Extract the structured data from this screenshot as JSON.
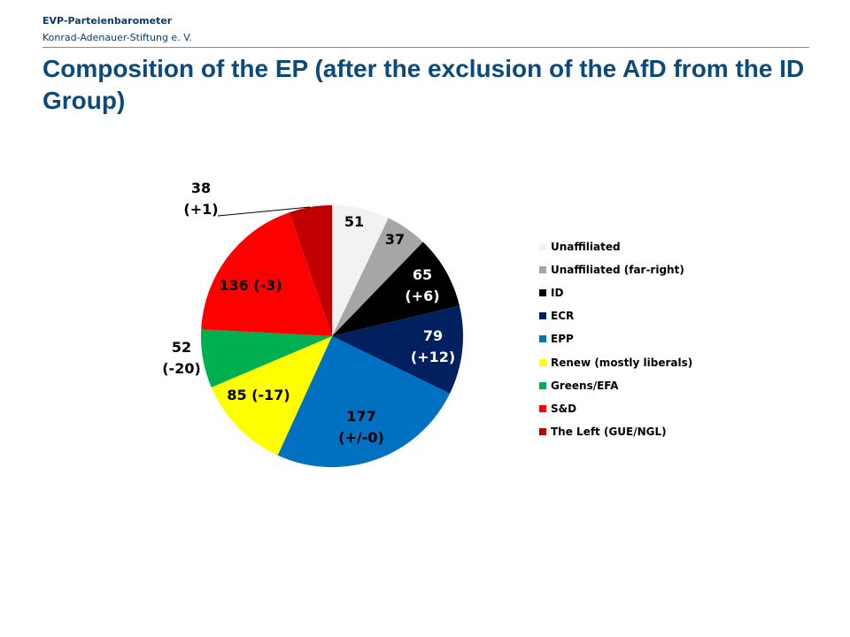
{
  "header": {
    "org": "EVP-Parteienbarometer",
    "subtitle": "Konrad-Adenauer-Stiftung e. V.",
    "title": "Composition of the EP (after the exclusion of the AfD from the ID Group)"
  },
  "chart_data": {
    "type": "pie",
    "title": "Composition of the EP (after the exclusion of the AfD from the ID Group)",
    "legend_position": "right",
    "categories": [
      "Unaffiliated",
      "Unaffiliated (far-right)",
      "ID",
      "ECR",
      "EPP",
      "Renew (mostly liberals)",
      "Greens/EFA",
      "S&D",
      "The Left (GUE/NGL)"
    ],
    "values": [
      51,
      37,
      65,
      79,
      177,
      85,
      52,
      136,
      38
    ],
    "changes": [
      "",
      "",
      "+6",
      "+12",
      "+/-0",
      "-17",
      "-20",
      "-3",
      "+1"
    ],
    "labels": [
      [
        "51"
      ],
      [
        "37"
      ],
      [
        "65",
        "(+6)"
      ],
      [
        "79",
        "(+12)"
      ],
      [
        "177",
        "(+/-0)"
      ],
      [
        "85 (-17)"
      ],
      [
        "52",
        "(-20)"
      ],
      [
        "136 (-3)"
      ],
      [
        "38",
        "(+1)"
      ]
    ],
    "colors": [
      "#f2f2f2",
      "#a6a6a6",
      "#000000",
      "#002060",
      "#0070c0",
      "#ffff00",
      "#00b050",
      "#ff0000",
      "#c00000"
    ],
    "label_colors": [
      "#000000",
      "#000000",
      "#ffffff",
      "#ffffff",
      "#000000",
      "#000000",
      "#000000",
      "#000000",
      "#000000"
    ]
  }
}
